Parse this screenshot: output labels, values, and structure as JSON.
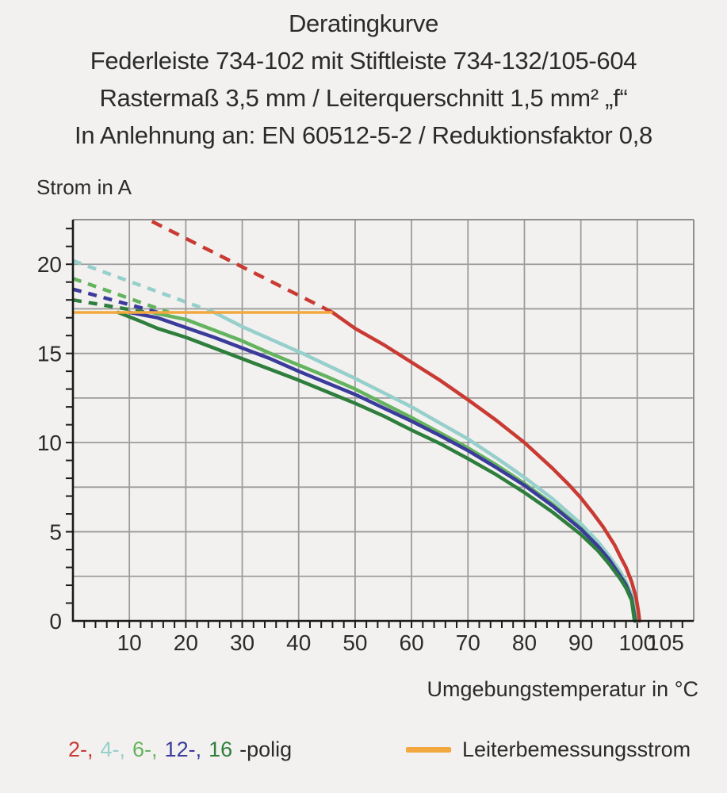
{
  "header": {
    "line1": "Deratingkurve",
    "line2": "Federleiste 734-102 mit Stiftleiste 734-132/105-604",
    "line3": "Rastermaß 3,5 mm / Leiterquerschnitt 1,5 mm² „f“",
    "line4": "In Anlehnung an: EN 60512-5-2 / Reduktionsfaktor 0,8"
  },
  "chart_data": {
    "type": "line",
    "title": "Deratingkurve",
    "xlabel": "Umgebungstemperatur in °C",
    "ylabel": "Strom in A",
    "x_range": [
      0,
      110
    ],
    "y_range": [
      0,
      22.5
    ],
    "x_grid_step": 10,
    "y_grid_step": 2.5,
    "x_minor_tick_step": 2,
    "y_minor_tick_step": 1,
    "x_ticks": [
      10,
      20,
      30,
      40,
      50,
      60,
      70,
      80,
      90,
      100,
      105
    ],
    "y_ticks": [
      0,
      5,
      10,
      15,
      20
    ],
    "grid_on": true,
    "legend_position": "bottom",
    "legend_suffix": "-polig",
    "colors": {
      "grid": "#9C9C9C",
      "frame": "#8F8F8F",
      "spine": "#1A1A1A",
      "text": "#2B2B2B",
      "background": "#F2F1EF"
    },
    "rated_line": {
      "label": "Leiterbemessungsstrom",
      "value": 17.3,
      "x_start": 0,
      "x_end": 46,
      "color": "#F2A83E"
    },
    "series": [
      {
        "name": "2-polig",
        "legend": "2-,",
        "color": "#C93A33",
        "dashed": [
          [
            14,
            22.4
          ],
          [
            46,
            17.3
          ]
        ],
        "solid": [
          [
            46,
            17.3
          ],
          [
            50,
            16.4
          ],
          [
            55,
            15.5
          ],
          [
            60,
            14.5
          ],
          [
            65,
            13.5
          ],
          [
            70,
            12.4
          ],
          [
            75,
            11.25
          ],
          [
            80,
            10.0
          ],
          [
            85,
            8.55
          ],
          [
            88,
            7.6
          ],
          [
            90,
            6.9
          ],
          [
            92,
            6.1
          ],
          [
            94,
            5.25
          ],
          [
            96,
            4.25
          ],
          [
            97,
            3.6
          ],
          [
            98,
            3.0
          ],
          [
            99,
            2.2
          ],
          [
            99.8,
            1.3
          ],
          [
            100.2,
            0.55
          ],
          [
            100.4,
            0
          ]
        ]
      },
      {
        "name": "4-polig",
        "legend": "4-,",
        "color": "#96CFCB",
        "dashed": [
          [
            0,
            20.2
          ],
          [
            25,
            17.3
          ]
        ],
        "solid": [
          [
            25,
            17.3
          ],
          [
            30,
            16.5
          ],
          [
            35,
            15.8
          ],
          [
            40,
            15.1
          ],
          [
            45,
            14.35
          ],
          [
            50,
            13.6
          ],
          [
            55,
            12.8
          ],
          [
            60,
            12.0
          ],
          [
            65,
            11.1
          ],
          [
            70,
            10.2
          ],
          [
            75,
            9.15
          ],
          [
            80,
            8.05
          ],
          [
            85,
            6.85
          ],
          [
            90,
            5.45
          ],
          [
            93,
            4.45
          ],
          [
            95,
            3.65
          ],
          [
            97,
            2.75
          ],
          [
            98,
            2.2
          ],
          [
            99,
            1.45
          ],
          [
            99.7,
            0.7
          ],
          [
            100,
            0
          ]
        ]
      },
      {
        "name": "6-polig",
        "legend": "6-,",
        "color": "#64B35F",
        "dashed": [
          [
            0,
            19.2
          ],
          [
            17,
            17.3
          ]
        ],
        "solid": [
          [
            14,
            17.3
          ],
          [
            20,
            16.9
          ],
          [
            25,
            16.3
          ],
          [
            30,
            15.7
          ],
          [
            35,
            15.0
          ],
          [
            40,
            14.35
          ],
          [
            45,
            13.7
          ],
          [
            50,
            13.0
          ],
          [
            55,
            12.2
          ],
          [
            60,
            11.4
          ],
          [
            65,
            10.55
          ],
          [
            70,
            9.7
          ],
          [
            75,
            8.75
          ],
          [
            80,
            7.7
          ],
          [
            85,
            6.55
          ],
          [
            90,
            5.2
          ],
          [
            93,
            4.2
          ],
          [
            95,
            3.45
          ],
          [
            97,
            2.55
          ],
          [
            98,
            2.05
          ],
          [
            99,
            1.25
          ],
          [
            99.8,
            0
          ]
        ]
      },
      {
        "name": "12-polig",
        "legend": "12-,",
        "color": "#3B3B9B",
        "dashed": [
          [
            0,
            18.6
          ],
          [
            15,
            17.3
          ]
        ],
        "solid": [
          [
            10,
            17.3
          ],
          [
            15,
            17.0
          ],
          [
            20,
            16.45
          ],
          [
            25,
            15.9
          ],
          [
            30,
            15.3
          ],
          [
            35,
            14.7
          ],
          [
            40,
            14.0
          ],
          [
            45,
            13.35
          ],
          [
            50,
            12.7
          ],
          [
            55,
            11.95
          ],
          [
            60,
            11.2
          ],
          [
            65,
            10.4
          ],
          [
            70,
            9.55
          ],
          [
            75,
            8.6
          ],
          [
            80,
            7.6
          ],
          [
            85,
            6.45
          ],
          [
            90,
            5.15
          ],
          [
            93,
            4.2
          ],
          [
            95,
            3.45
          ],
          [
            97,
            2.5
          ],
          [
            98,
            2.0
          ],
          [
            99,
            1.25
          ],
          [
            99.6,
            0
          ]
        ]
      },
      {
        "name": "16-polig",
        "legend": "16",
        "color": "#2F7E3E",
        "dashed": [
          [
            0,
            18.0
          ],
          [
            13,
            17.3
          ]
        ],
        "solid": [
          [
            8,
            17.3
          ],
          [
            12,
            16.8
          ],
          [
            15,
            16.4
          ],
          [
            20,
            15.9
          ],
          [
            25,
            15.3
          ],
          [
            30,
            14.7
          ],
          [
            35,
            14.1
          ],
          [
            40,
            13.5
          ],
          [
            45,
            12.85
          ],
          [
            50,
            12.2
          ],
          [
            55,
            11.5
          ],
          [
            60,
            10.7
          ],
          [
            65,
            9.95
          ],
          [
            70,
            9.1
          ],
          [
            75,
            8.2
          ],
          [
            80,
            7.2
          ],
          [
            85,
            6.1
          ],
          [
            90,
            4.85
          ],
          [
            93,
            3.95
          ],
          [
            95,
            3.2
          ],
          [
            97,
            2.35
          ],
          [
            98,
            1.85
          ],
          [
            99,
            1.15
          ],
          [
            99.5,
            0
          ]
        ]
      }
    ]
  }
}
